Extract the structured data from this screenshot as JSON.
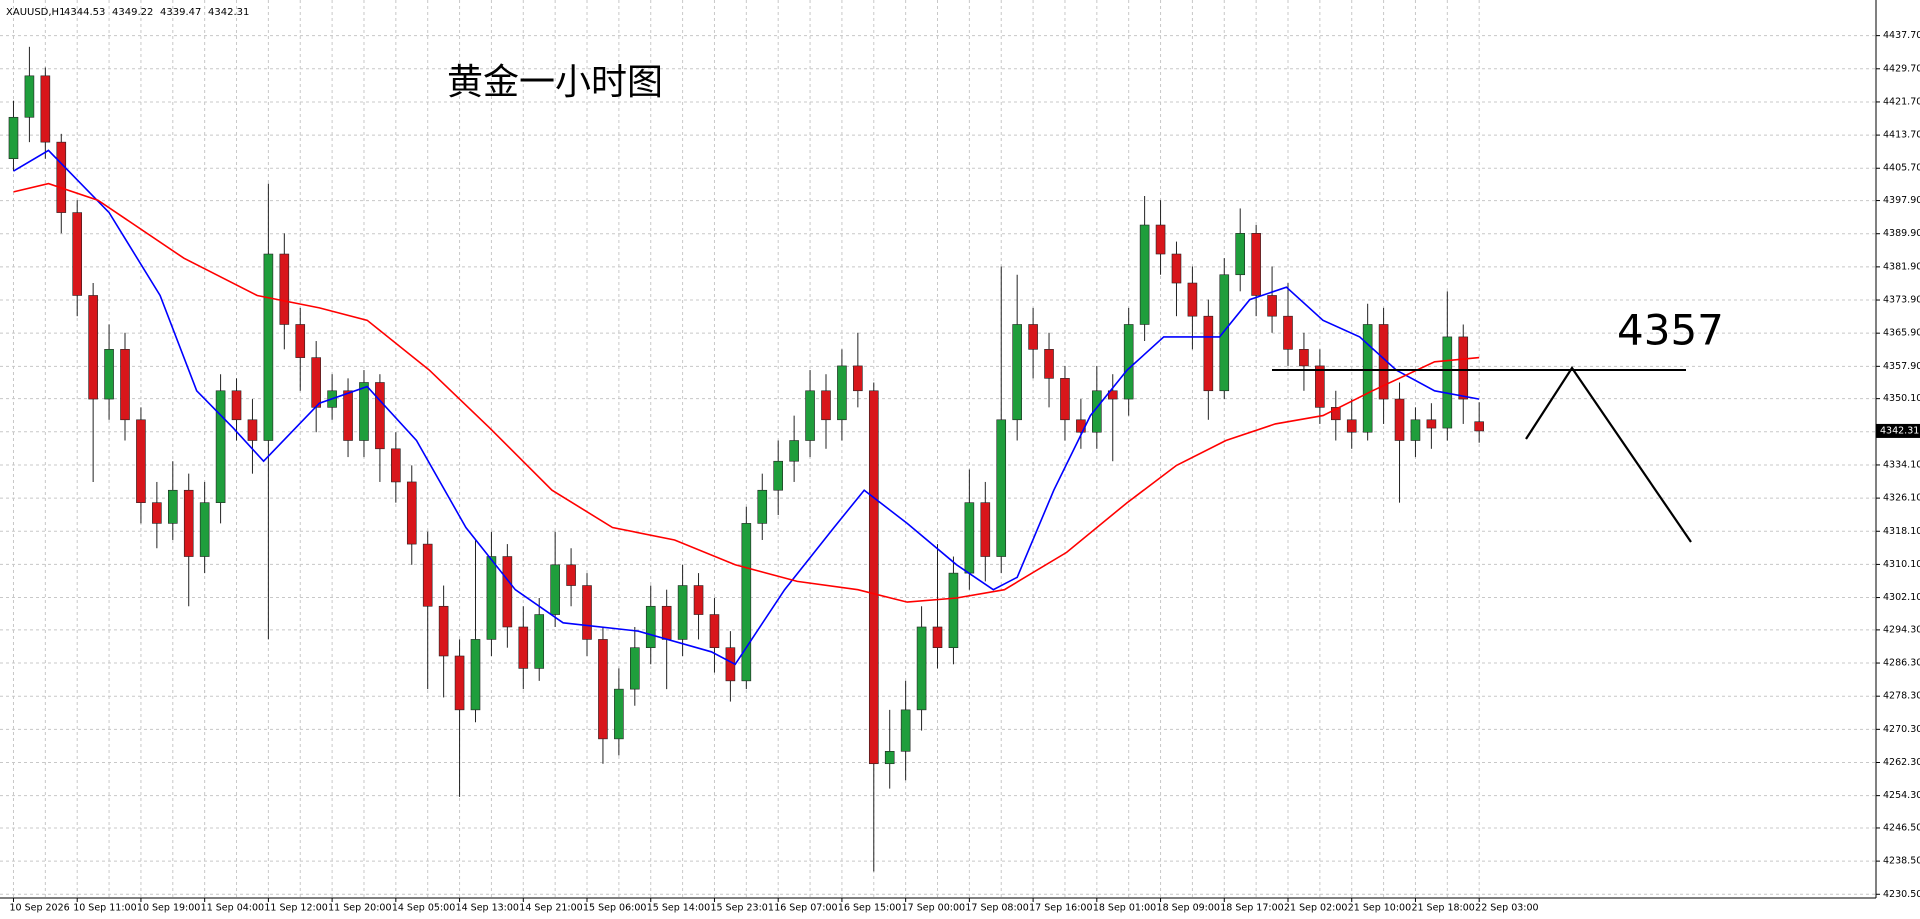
{
  "chart_data": {
    "type": "candlestick",
    "title": "黄金一小时图",
    "symbol": "XAUUSD,H1",
    "header_ohlc": [
      4344.53,
      4349.22,
      4339.47,
      4342.31
    ],
    "current_price": 4342.31,
    "level": 4357,
    "grid": true,
    "up_color": "#1f9e3c",
    "down_color": "#d8161b",
    "wick_color": "#222222",
    "categories": [
      "10 Sep 2026",
      null,
      null,
      null,
      "10 Sep 11:00",
      null,
      null,
      null,
      "10 Sep 19:00",
      null,
      null,
      null,
      "11 Sep 04:00",
      null,
      null,
      null,
      "11 Sep 12:00",
      null,
      null,
      null,
      "11 Sep 20:00",
      null,
      null,
      null,
      "14 Sep 05:00",
      null,
      null,
      null,
      "14 Sep 13:00",
      null,
      null,
      null,
      "14 Sep 21:00",
      null,
      null,
      null,
      "15 Sep 06:00",
      null,
      null,
      null,
      "15 Sep 14:00",
      null,
      null,
      null,
      "15 Sep 23:01",
      null,
      null,
      null,
      "16 Sep 07:00",
      null,
      null,
      null,
      "16 Sep 15:00",
      null,
      null,
      null,
      "17 Sep 00:00",
      null,
      null,
      null,
      "17 Sep 08:00",
      null,
      null,
      null,
      "17 Sep 16:00",
      null,
      null,
      null,
      "18 Sep 01:00",
      null,
      null,
      null,
      "18 Sep 09:00",
      null,
      null,
      null,
      "18 Sep 17:00",
      null,
      null,
      null,
      "21 Sep 02:00",
      null,
      null,
      null,
      "21 Sep 10:00",
      null,
      null,
      null,
      "21 Sep 18:00",
      null,
      null,
      null,
      "22 Sep 03:00"
    ],
    "ohlc": [
      [
        4408,
        4422,
        4405,
        4418
      ],
      [
        4418,
        4435,
        4412,
        4428
      ],
      [
        4428,
        4430,
        4408,
        4412
      ],
      [
        4412,
        4414,
        4390,
        4395
      ],
      [
        4395,
        4398,
        4370,
        4375
      ],
      [
        4375,
        4378,
        4330,
        4350
      ],
      [
        4350,
        4368,
        4345,
        4362
      ],
      [
        4362,
        4366,
        4340,
        4345
      ],
      [
        4345,
        4348,
        4320,
        4325
      ],
      [
        4325,
        4330,
        4314,
        4320
      ],
      [
        4320,
        4335,
        4316,
        4328
      ],
      [
        4328,
        4332,
        4300,
        4312
      ],
      [
        4312,
        4330,
        4308,
        4325
      ],
      [
        4325,
        4356,
        4320,
        4352
      ],
      [
        4352,
        4355,
        4340,
        4345
      ],
      [
        4345,
        4350,
        4332,
        4340
      ],
      [
        4340,
        4402,
        4292,
        4385
      ],
      [
        4385,
        4390,
        4362,
        4368
      ],
      [
        4368,
        4372,
        4352,
        4360
      ],
      [
        4360,
        4364,
        4342,
        4348
      ],
      [
        4348,
        4356,
        4345,
        4352
      ],
      [
        4352,
        4355,
        4336,
        4340
      ],
      [
        4340,
        4357,
        4336,
        4354
      ],
      [
        4354,
        4356,
        4330,
        4338
      ],
      [
        4338,
        4342,
        4325,
        4330
      ],
      [
        4330,
        4334,
        4310,
        4315
      ],
      [
        4315,
        4318,
        4280,
        4300
      ],
      [
        4300,
        4305,
        4278,
        4288
      ],
      [
        4288,
        4292,
        4254,
        4275
      ],
      [
        4275,
        4316,
        4272,
        4292
      ],
      [
        4292,
        4318,
        4288,
        4312
      ],
      [
        4312,
        4315,
        4290,
        4295
      ],
      [
        4295,
        4300,
        4280,
        4285
      ],
      [
        4285,
        4302,
        4282,
        4298
      ],
      [
        4298,
        4318,
        4295,
        4310
      ],
      [
        4310,
        4314,
        4300,
        4305
      ],
      [
        4305,
        4308,
        4288,
        4292
      ],
      [
        4292,
        4295,
        4262,
        4268
      ],
      [
        4268,
        4285,
        4264,
        4280
      ],
      [
        4280,
        4295,
        4276,
        4290
      ],
      [
        4290,
        4305,
        4286,
        4300
      ],
      [
        4300,
        4304,
        4280,
        4292
      ],
      [
        4292,
        4310,
        4288,
        4305
      ],
      [
        4305,
        4308,
        4292,
        4298
      ],
      [
        4298,
        4302,
        4284,
        4290
      ],
      [
        4290,
        4294,
        4277,
        4282
      ],
      [
        4282,
        4324,
        4280,
        4320
      ],
      [
        4320,
        4332,
        4316,
        4328
      ],
      [
        4328,
        4340,
        4322,
        4335
      ],
      [
        4335,
        4346,
        4330,
        4340
      ],
      [
        4340,
        4357,
        4336,
        4352
      ],
      [
        4352,
        4356,
        4338,
        4345
      ],
      [
        4345,
        4362,
        4340,
        4358
      ],
      [
        4358,
        4366,
        4348,
        4352
      ],
      [
        4352,
        4354,
        4236,
        4262
      ],
      [
        4262,
        4275,
        4256,
        4265
      ],
      [
        4265,
        4282,
        4258,
        4275
      ],
      [
        4275,
        4300,
        4270,
        4295
      ],
      [
        4295,
        4315,
        4285,
        4290
      ],
      [
        4290,
        4312,
        4286,
        4308
      ],
      [
        4308,
        4333,
        4304,
        4325
      ],
      [
        4325,
        4330,
        4306,
        4312
      ],
      [
        4312,
        4382,
        4308,
        4345
      ],
      [
        4345,
        4380,
        4340,
        4368
      ],
      [
        4368,
        4372,
        4355,
        4362
      ],
      [
        4362,
        4366,
        4348,
        4355
      ],
      [
        4355,
        4358,
        4340,
        4345
      ],
      [
        4345,
        4350,
        4338,
        4342
      ],
      [
        4342,
        4358,
        4338,
        4352
      ],
      [
        4352,
        4356,
        4335,
        4350
      ],
      [
        4350,
        4372,
        4346,
        4368
      ],
      [
        4368,
        4399,
        4364,
        4392
      ],
      [
        4392,
        4398,
        4380,
        4385
      ],
      [
        4385,
        4388,
        4370,
        4378
      ],
      [
        4378,
        4382,
        4362,
        4370
      ],
      [
        4370,
        4374,
        4345,
        4352
      ],
      [
        4352,
        4384,
        4350,
        4380
      ],
      [
        4380,
        4396,
        4376,
        4390
      ],
      [
        4390,
        4392,
        4370,
        4375
      ],
      [
        4375,
        4382,
        4366,
        4370
      ],
      [
        4370,
        4378,
        4358,
        4362
      ],
      [
        4362,
        4366,
        4352,
        4358
      ],
      [
        4358,
        4362,
        4344,
        4348
      ],
      [
        4348,
        4352,
        4340,
        4345
      ],
      [
        4345,
        4350,
        4338,
        4342
      ],
      [
        4342,
        4373,
        4340,
        4368
      ],
      [
        4368,
        4372,
        4344,
        4350
      ],
      [
        4350,
        4354,
        4325,
        4340
      ],
      [
        4340,
        4348,
        4336,
        4345
      ],
      [
        4345,
        4349,
        4338,
        4343
      ],
      [
        4343,
        4376,
        4340,
        4365
      ],
      [
        4365,
        4368,
        4344,
        4350
      ],
      [
        4344.53,
        4349.22,
        4339.47,
        4342.31
      ]
    ],
    "series": [
      {
        "color": "#0000ff",
        "x": [
          0,
          2.2,
          6,
          9.2,
          11.5,
          13.8,
          15.7,
          19.2,
          22.2,
          25.3,
          28.4,
          31.5,
          34.5,
          39.2,
          43.8,
          45.3,
          48.4,
          51.5,
          53.4,
          56.1,
          59.2,
          61.5,
          63,
          65.3,
          67.6,
          69.9,
          72.2,
          74.2,
          75.7,
          77.6,
          79.9,
          82.2,
          84.5,
          86.8,
          89.2,
          92
        ],
        "values": [
          4405,
          4410,
          4395,
          4375,
          4352,
          4343,
          4335,
          4349,
          4353,
          4340,
          4319,
          4304,
          4296,
          4294,
          4289,
          4286,
          4304,
          4319,
          4328,
          4320,
          4310,
          4304,
          4307,
          4328,
          4346,
          4357,
          4365,
          4365,
          4365,
          4374,
          4377,
          4369,
          4365,
          4357,
          4352,
          4350
        ]
      },
      {
        "color": "#ff0000",
        "x": [
          0,
          2.2,
          5.3,
          10.7,
          15.3,
          19.2,
          22.2,
          26.1,
          29.9,
          33.8,
          37.6,
          41.5,
          45.3,
          49.2,
          53,
          56.1,
          59.2,
          62.2,
          66.1,
          69.9,
          73,
          76.1,
          79.2,
          82.2,
          85.3,
          89.2,
          92
        ],
        "values": [
          4400,
          4402,
          4398,
          4384,
          4375,
          4372,
          4369,
          4357,
          4343,
          4328,
          4319,
          4316,
          4310,
          4306,
          4304,
          4301,
          4302,
          4304,
          4313,
          4325,
          4334,
          4340,
          4344,
          4346,
          4352,
          4359,
          4360
        ]
      }
    ],
    "ylim": [
      4229.6,
      4446.3
    ],
    "yticks": [
      {
        "value": 4437.7,
        "label": "4437.70"
      },
      {
        "value": 4429.7,
        "label": "4429.70"
      },
      {
        "value": 4421.7,
        "label": "4421.70"
      },
      {
        "value": 4413.7,
        "label": "4413.70"
      },
      {
        "value": 4405.7,
        "label": "4405.70"
      },
      {
        "value": 4397.9,
        "label": "4397.90"
      },
      {
        "value": 4389.9,
        "label": "4389.90"
      },
      {
        "value": 4381.9,
        "label": "4381.90"
      },
      {
        "value": 4373.9,
        "label": "4373.90"
      },
      {
        "value": 4365.9,
        "label": "4365.90"
      },
      {
        "value": 4357.9,
        "label": "4357.90"
      },
      {
        "value": 4350.1,
        "label": "4350.10"
      },
      {
        "value": 4342.1,
        "label": "4342.10"
      },
      {
        "value": 4334.1,
        "label": "4334.10"
      },
      {
        "value": 4326.1,
        "label": "4326.10"
      },
      {
        "value": 4318.1,
        "label": "4318.10"
      },
      {
        "value": 4310.1,
        "label": "4310.10"
      },
      {
        "value": 4302.1,
        "label": "4302.10"
      },
      {
        "value": 4294.3,
        "label": "4294.30"
      },
      {
        "value": 4286.3,
        "label": "4286.30"
      },
      {
        "value": 4278.3,
        "label": "4278.30"
      },
      {
        "value": 4270.3,
        "label": "4270.30"
      },
      {
        "value": 4262.3,
        "label": "4262.30"
      },
      {
        "value": 4254.3,
        "label": "4254.30"
      },
      {
        "value": 4246.5,
        "label": "4246.50"
      },
      {
        "value": 4238.5,
        "label": "4238.50"
      },
      {
        "value": 4230.5,
        "label": "4230.50"
      }
    ]
  }
}
